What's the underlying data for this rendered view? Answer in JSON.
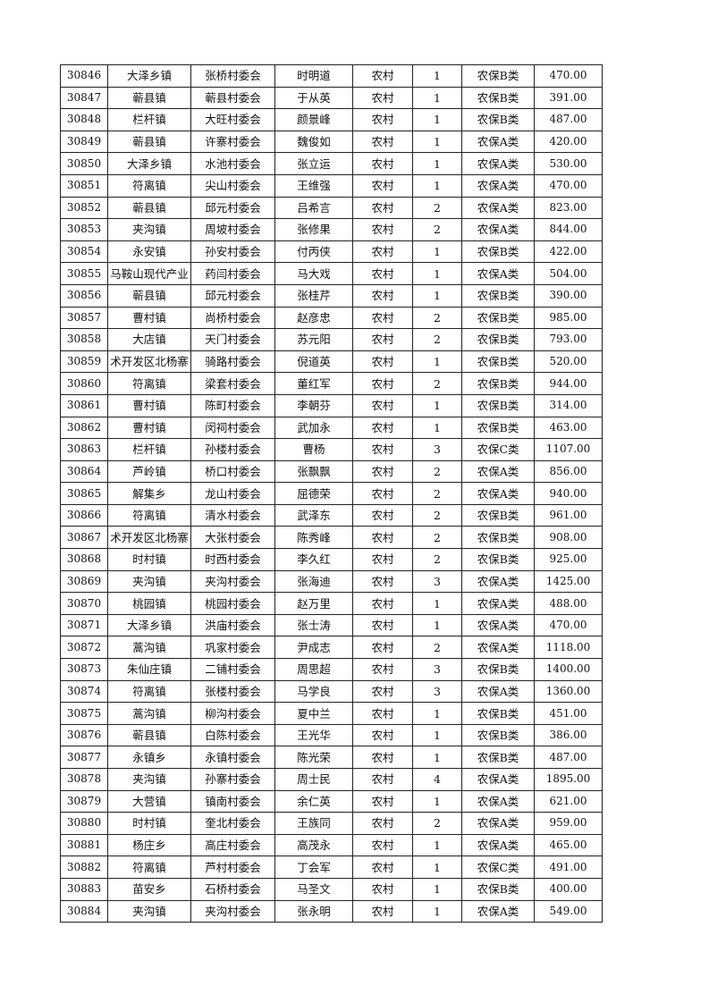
{
  "rows": [
    [
      "30846",
      "大泽乡镇",
      "张桥村委会",
      "时明道",
      "农村",
      "1",
      "农保B类",
      "470.00"
    ],
    [
      "30847",
      "蕲县镇",
      "蕲县村委会",
      "于从英",
      "农村",
      "1",
      "农保B类",
      "391.00"
    ],
    [
      "30848",
      "栏杆镇",
      "大旺村委会",
      "颜景峰",
      "农村",
      "1",
      "农保B类",
      "487.00"
    ],
    [
      "30849",
      "蕲县镇",
      "许寨村委会",
      "魏俊如",
      "农村",
      "1",
      "农保A类",
      "420.00"
    ],
    [
      "30850",
      "大泽乡镇",
      "水池村委会",
      "张立运",
      "农村",
      "1",
      "农保A类",
      "530.00"
    ],
    [
      "30851",
      "符离镇",
      "尖山村委会",
      "王维强",
      "农村",
      "1",
      "农保A类",
      "470.00"
    ],
    [
      "30852",
      "蕲县镇",
      "邱元村委会",
      "吕希言",
      "农村",
      "2",
      "农保A类",
      "823.00"
    ],
    [
      "30853",
      "夹沟镇",
      "周坡村委会",
      "张修果",
      "农村",
      "2",
      "农保A类",
      "844.00"
    ],
    [
      "30854",
      "永安镇",
      "孙安村委会",
      "付丙侠",
      "农村",
      "1",
      "农保B类",
      "422.00"
    ],
    [
      "30855",
      "马鞍山现代产业",
      "药闫村委会",
      "马大戏",
      "农村",
      "1",
      "农保A类",
      "504.00"
    ],
    [
      "30856",
      "蕲县镇",
      "邱元村委会",
      "张桂芹",
      "农村",
      "1",
      "农保B类",
      "390.00"
    ],
    [
      "30857",
      "曹村镇",
      "尚桥村委会",
      "赵彦忠",
      "农村",
      "2",
      "农保B类",
      "985.00"
    ],
    [
      "30858",
      "大店镇",
      "天门村委会",
      "苏元阳",
      "农村",
      "2",
      "农保B类",
      "793.00"
    ],
    [
      "30859",
      "术开发区北杨寨",
      "骑路村委会",
      "倪道英",
      "农村",
      "1",
      "农保B类",
      "520.00"
    ],
    [
      "30860",
      "符离镇",
      "梁套村委会",
      "董红军",
      "农村",
      "2",
      "农保B类",
      "944.00"
    ],
    [
      "30861",
      "曹村镇",
      "陈町村委会",
      "李朝芬",
      "农村",
      "1",
      "农保B类",
      "314.00"
    ],
    [
      "30862",
      "曹村镇",
      "闵祠村委会",
      "武加永",
      "农村",
      "1",
      "农保B类",
      "463.00"
    ],
    [
      "30863",
      "栏杆镇",
      "孙楼村委会",
      "曹杨",
      "农村",
      "3",
      "农保C类",
      "1107.00"
    ],
    [
      "30864",
      "芦岭镇",
      "桥口村委会",
      "张飘飘",
      "农村",
      "2",
      "农保A类",
      "856.00"
    ],
    [
      "30865",
      "解集乡",
      "龙山村委会",
      "屈德荣",
      "农村",
      "2",
      "农保A类",
      "940.00"
    ],
    [
      "30866",
      "符离镇",
      "清水村委会",
      "武泽东",
      "农村",
      "2",
      "农保B类",
      "961.00"
    ],
    [
      "30867",
      "术开发区北杨寨",
      "大张村委会",
      "陈秀峰",
      "农村",
      "2",
      "农保B类",
      "908.00"
    ],
    [
      "30868",
      "时村镇",
      "时西村委会",
      "李久红",
      "农村",
      "2",
      "农保B类",
      "925.00"
    ],
    [
      "30869",
      "夹沟镇",
      "夹沟村委会",
      "张海迪",
      "农村",
      "3",
      "农保A类",
      "1425.00"
    ],
    [
      "30870",
      "桃园镇",
      "桃园村委会",
      "赵万里",
      "农村",
      "1",
      "农保A类",
      "488.00"
    ],
    [
      "30871",
      "大泽乡镇",
      "洪庙村委会",
      "张士涛",
      "农村",
      "1",
      "农保A类",
      "470.00"
    ],
    [
      "30872",
      "蒿沟镇",
      "巩家村委会",
      "尹成志",
      "农村",
      "2",
      "农保A类",
      "1118.00"
    ],
    [
      "30873",
      "朱仙庄镇",
      "二铺村委会",
      "周思超",
      "农村",
      "3",
      "农保B类",
      "1400.00"
    ],
    [
      "30874",
      "符离镇",
      "张楼村委会",
      "马学良",
      "农村",
      "3",
      "农保A类",
      "1360.00"
    ],
    [
      "30875",
      "蒿沟镇",
      "柳沟村委会",
      "夏中兰",
      "农村",
      "1",
      "农保B类",
      "451.00"
    ],
    [
      "30876",
      "蕲县镇",
      "白陈村委会",
      "王光华",
      "农村",
      "1",
      "农保B类",
      "386.00"
    ],
    [
      "30877",
      "永镇乡",
      "永镇村委会",
      "陈光荣",
      "农村",
      "1",
      "农保B类",
      "487.00"
    ],
    [
      "30878",
      "夹沟镇",
      "孙寨村委会",
      "周士民",
      "农村",
      "4",
      "农保A类",
      "1895.00"
    ],
    [
      "30879",
      "大营镇",
      "镇南村委会",
      "余仁英",
      "农村",
      "1",
      "农保A类",
      "621.00"
    ],
    [
      "30880",
      "时村镇",
      "奎北村委会",
      "王族同",
      "农村",
      "2",
      "农保A类",
      "959.00"
    ],
    [
      "30881",
      "杨庄乡",
      "高庄村委会",
      "高茂永",
      "农村",
      "1",
      "农保A类",
      "465.00"
    ],
    [
      "30882",
      "符离镇",
      "芦村村委会",
      "丁会军",
      "农村",
      "1",
      "农保C类",
      "491.00"
    ],
    [
      "30883",
      "苗安乡",
      "石桥村委会",
      "马圣文",
      "农村",
      "1",
      "农保B类",
      "400.00"
    ],
    [
      "30884",
      "夹沟镇",
      "夹沟村委会",
      "张永明",
      "农村",
      "1",
      "农保A类",
      "549.00"
    ]
  ]
}
